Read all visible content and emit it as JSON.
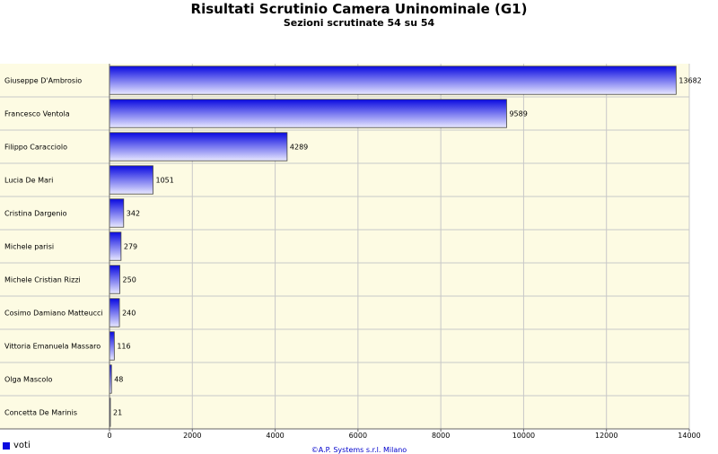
{
  "colors": {
    "plot_bg": "#fdfbe3",
    "grid": "#c8c8c8",
    "bar_dark": "#0a0ae0",
    "bar_light": "#e8e8ff",
    "footer": "#0000cc"
  },
  "footer_text": "©A.P. Systems s.r.l. Milano",
  "chart_data": {
    "type": "bar",
    "orientation": "horizontal",
    "title": "Risultati Scrutinio Camera Uninominale (G1)",
    "subtitle": "Sezioni scrutinate 54 su 54",
    "categories": [
      "Giuseppe D'Ambrosio",
      "Francesco Ventola",
      "Filippo Caracciolo",
      "Lucia De Mari",
      "Cristina Dargenio",
      "Michele parisi",
      "Michele Cristian Rizzi",
      "Cosimo Damiano Matteucci",
      "Vittoria Emanuela Massaro",
      "Olga Mascolo",
      "Concetta De Marinis"
    ],
    "series": [
      {
        "name": "voti",
        "values": [
          13682,
          9589,
          4289,
          1051,
          342,
          279,
          250,
          240,
          116,
          48,
          21
        ]
      }
    ],
    "xlim": [
      0,
      14000
    ],
    "xticks": [
      0,
      2000,
      4000,
      6000,
      8000,
      10000,
      12000,
      14000
    ],
    "grid": true,
    "legend": "bottom-left"
  }
}
